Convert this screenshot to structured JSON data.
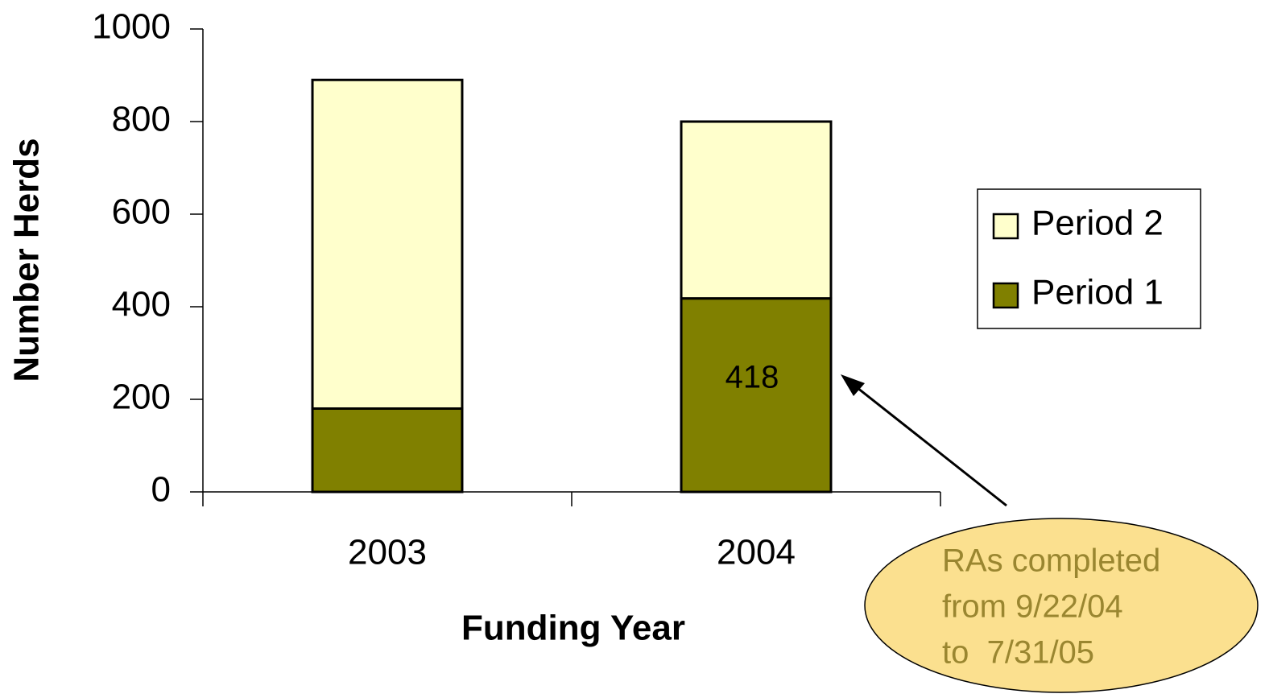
{
  "chart_data": {
    "type": "bar",
    "stacked": true,
    "xlabel": "Funding Year",
    "ylabel": "Number Herds",
    "categories": [
      "2003",
      "2004"
    ],
    "series": [
      {
        "name": "Period 1",
        "color": "#808000",
        "values": [
          180,
          418
        ]
      },
      {
        "name": "Period 2",
        "color": "#ffffcc",
        "values": [
          710,
          382
        ]
      }
    ],
    "ylim": [
      0,
      1000
    ],
    "yticks": [
      0,
      200,
      400,
      600,
      800,
      1000
    ],
    "legend": "right",
    "annotation": {
      "lines": [
        "RAs completed",
        "from 9/22/04",
        "to  7/31/05"
      ],
      "color": "#fbe08f",
      "text_color": "#9a8630"
    }
  }
}
